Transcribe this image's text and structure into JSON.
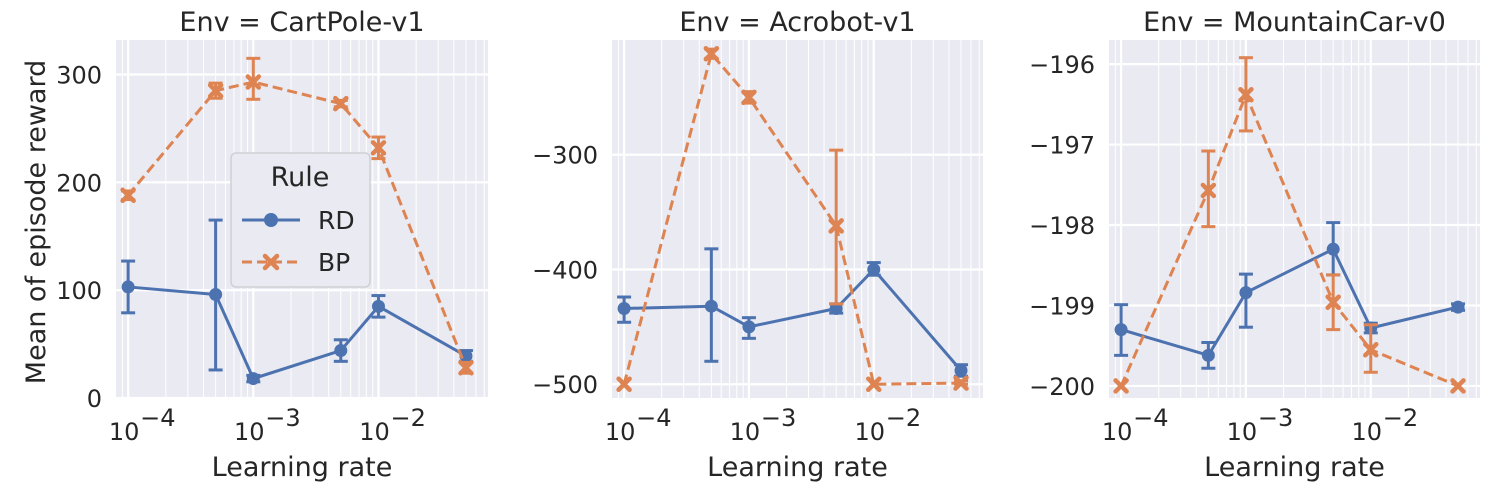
{
  "figure": {
    "ylabel": "Mean of episode reward",
    "xlabel": "Learning rate"
  },
  "legend": {
    "title": "Rule",
    "entries": [
      {
        "label": "RD",
        "color": "#4c72b0",
        "marker": "circle",
        "dash": "solid"
      },
      {
        "label": "BP",
        "color": "#dd8452",
        "marker": "x",
        "dash": "dashed"
      }
    ]
  },
  "chart_data": [
    {
      "type": "line",
      "title": "Env = CartPole-v1",
      "xlabel": "Learning rate",
      "ylabel": "Mean of episode reward",
      "xscale": "log",
      "xlim": [
        8e-05,
        0.075
      ],
      "ylim": [
        0,
        332
      ],
      "yticks": [
        0,
        100,
        200,
        300
      ],
      "ytick_labels": [
        "0",
        "100",
        "200",
        "300"
      ],
      "xticks": [
        0.0001,
        0.001,
        0.01
      ],
      "xtick_labels": [
        "10",
        "10",
        "10"
      ],
      "xtick_exponents": [
        "−4",
        "−3",
        "−2"
      ],
      "x": [
        0.0001,
        0.0005,
        0.001,
        0.005,
        0.01,
        0.05
      ],
      "series": [
        {
          "name": "RD",
          "values": [
            103,
            96,
            18,
            44,
            85,
            39
          ],
          "err_low": [
            79,
            26,
            15,
            34,
            75,
            34
          ],
          "err_high": [
            127,
            165,
            21,
            54,
            95,
            44
          ]
        },
        {
          "name": "BP",
          "values": [
            188,
            285,
            293,
            273,
            232,
            28
          ],
          "err_low": [
            184,
            278,
            277,
            270,
            222,
            23
          ],
          "err_high": [
            192,
            292,
            315,
            276,
            242,
            33
          ]
        }
      ],
      "grid": true
    },
    {
      "type": "line",
      "title": "Env = Acrobot-v1",
      "xlabel": "Learning rate",
      "ylabel": "",
      "xscale": "log",
      "xlim": [
        8e-05,
        0.075
      ],
      "ylim": [
        -512,
        -200
      ],
      "yticks": [
        -500,
        -400,
        -300
      ],
      "ytick_labels": [
        "−500",
        "−400",
        "−300"
      ],
      "xticks": [
        0.0001,
        0.001,
        0.01
      ],
      "xtick_labels": [
        "10",
        "10",
        "10"
      ],
      "xtick_exponents": [
        "−4",
        "−3",
        "−2"
      ],
      "x": [
        0.0001,
        0.0005,
        0.001,
        0.005,
        0.01,
        0.05
      ],
      "series": [
        {
          "name": "RD",
          "values": [
            -434,
            -432,
            -450,
            -434,
            -400,
            -488
          ],
          "err_low": [
            -446,
            -480,
            -460,
            -438,
            -405,
            -493
          ],
          "err_high": [
            -424,
            -382,
            -442,
            -430,
            -394,
            -483
          ]
        },
        {
          "name": "BP",
          "values": [
            -500,
            -212,
            -250,
            -362,
            -500,
            -499
          ],
          "err_low": [
            -500,
            -216,
            -255,
            -430,
            -500,
            -500
          ],
          "err_high": [
            -500,
            -208,
            -245,
            -296,
            -500,
            -497
          ]
        }
      ],
      "grid": true
    },
    {
      "type": "line",
      "title": "Env = MountainCar-v0",
      "xlabel": "Learning rate",
      "ylabel": "",
      "xscale": "log",
      "xlim": [
        8e-05,
        0.075
      ],
      "ylim": [
        -200.15,
        -195.7
      ],
      "yticks": [
        -200,
        -199,
        -198,
        -197,
        -196
      ],
      "ytick_labels": [
        "−200",
        "−199",
        "−198",
        "−197",
        "−196"
      ],
      "xticks": [
        0.0001,
        0.001,
        0.01
      ],
      "xtick_labels": [
        "10",
        "10",
        "10"
      ],
      "xtick_exponents": [
        "−4",
        "−3",
        "−2"
      ],
      "x": [
        0.0001,
        0.0005,
        0.001,
        0.005,
        0.01,
        0.05
      ],
      "series": [
        {
          "name": "RD",
          "values": [
            -199.3,
            -199.62,
            -198.84,
            -198.3,
            -199.28,
            -199.02
          ],
          "err_low": [
            -199.62,
            -199.78,
            -199.27,
            -198.62,
            -199.34,
            -199.06
          ],
          "err_high": [
            -198.99,
            -199.46,
            -198.61,
            -197.97,
            -199.22,
            -198.98
          ]
        },
        {
          "name": "BP",
          "values": [
            -200,
            -197.57,
            -196.38,
            -198.96,
            -199.55,
            -200
          ],
          "err_low": [
            -200,
            -198.02,
            -196.83,
            -199.3,
            -199.83,
            -200
          ],
          "err_high": [
            -200,
            -197.08,
            -195.92,
            -198.62,
            -199.24,
            -200
          ]
        }
      ],
      "grid": true
    }
  ]
}
